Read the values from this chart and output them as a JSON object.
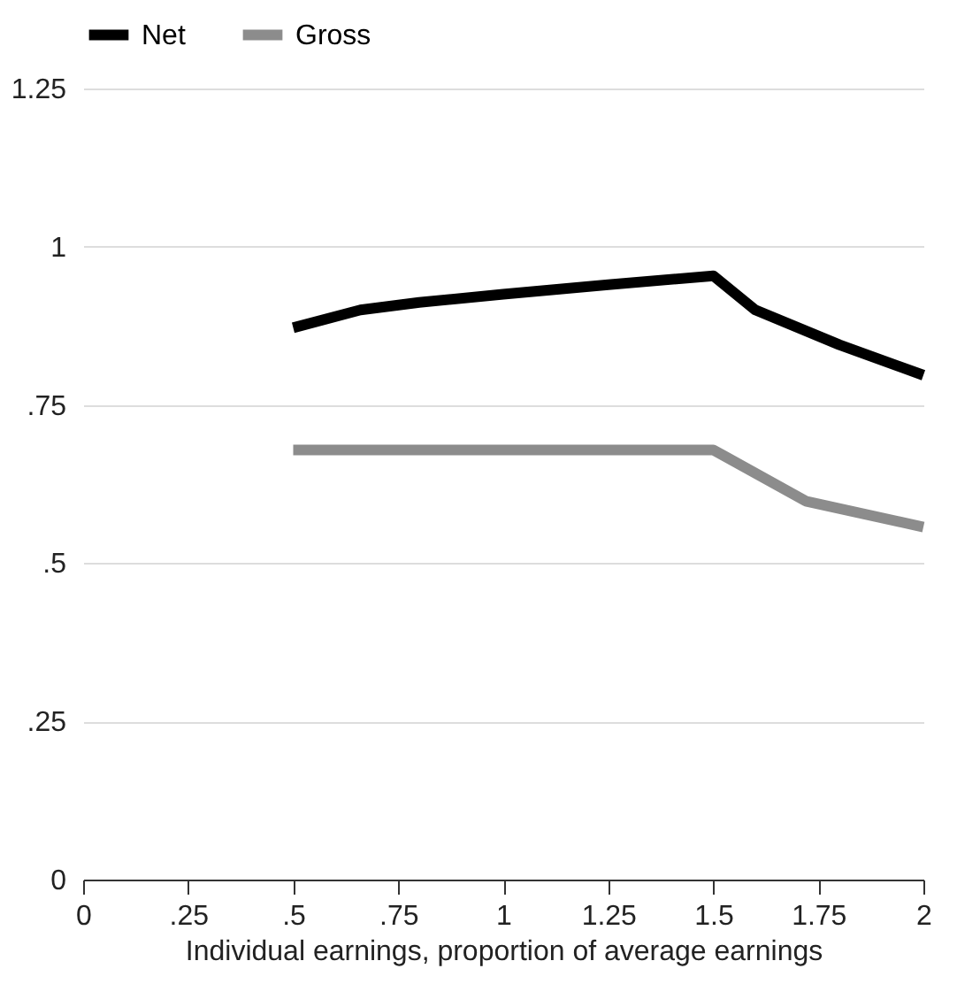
{
  "chart_data": {
    "type": "line",
    "xlabel": "Individual earnings, proportion of average earnings",
    "xlim": [
      0,
      2
    ],
    "ylim": [
      0,
      1.25
    ],
    "xticks": [
      0,
      {
        "value": 0.25,
        "label": ".25"
      },
      {
        "value": 0.5,
        "label": ".5"
      },
      {
        "value": 0.75,
        "label": ".75"
      },
      1,
      1.25,
      1.5,
      1.75,
      2
    ],
    "yticks": [
      0,
      {
        "value": 0.25,
        "label": ".25"
      },
      {
        "value": 0.5,
        "label": ".5"
      },
      {
        "value": 0.75,
        "label": ".75"
      },
      1,
      1.25
    ],
    "grid": "y",
    "legend": "top",
    "line_style": "solid",
    "marker": "none",
    "series": [
      {
        "name": "Net",
        "color": "#000000",
        "x": [
          0.5,
          0.66,
          0.8,
          1.0,
          1.25,
          1.5,
          1.6,
          1.8,
          2.0
        ],
        "values": [
          0.872,
          0.9,
          0.912,
          0.925,
          0.94,
          0.954,
          0.9,
          0.845,
          0.797
        ]
      },
      {
        "name": "Gross",
        "color": "#8c8c8c",
        "x": [
          0.5,
          1.5,
          1.72,
          2.0
        ],
        "values": [
          0.679,
          0.679,
          0.598,
          0.557
        ]
      }
    ]
  }
}
